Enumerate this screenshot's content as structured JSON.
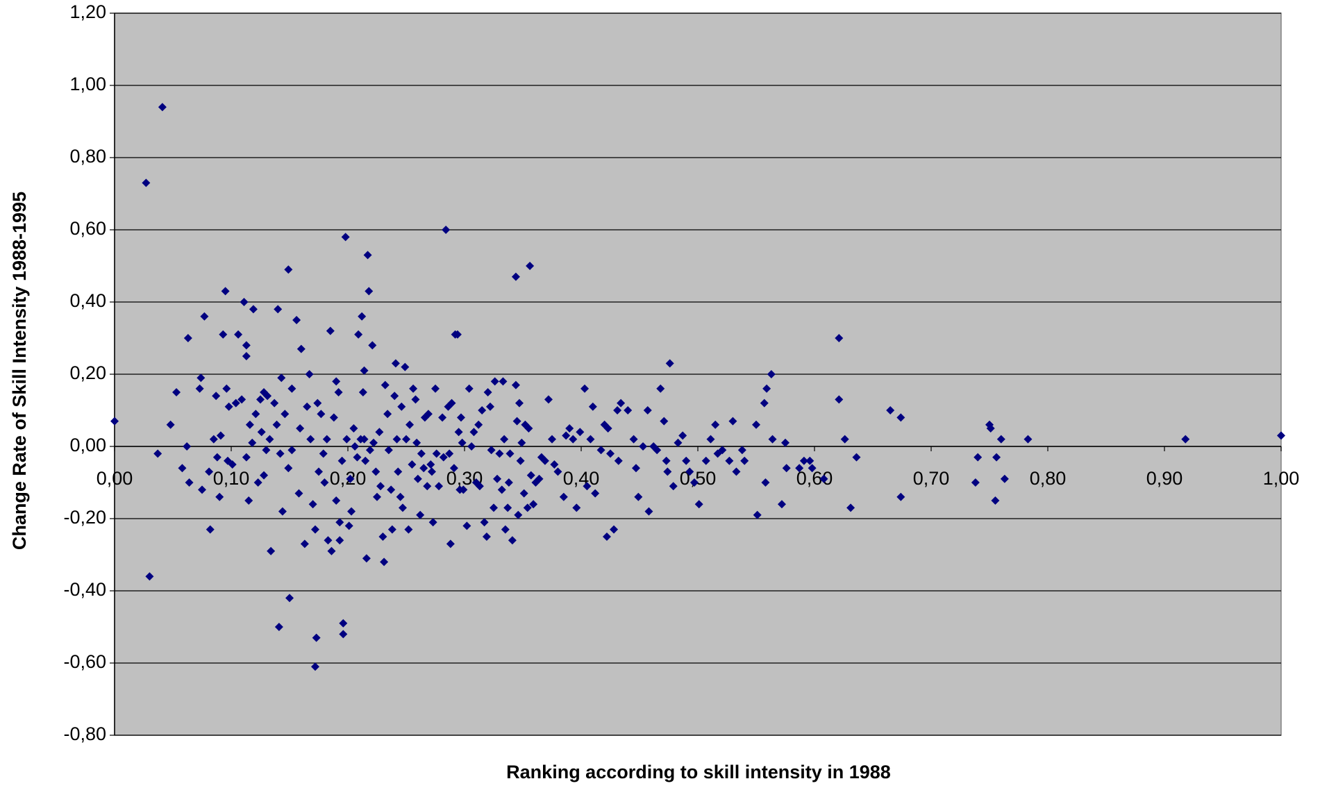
{
  "chart_data": {
    "type": "scatter",
    "xlabel": "Ranking according to skill intensity in 1988",
    "ylabel": "Change Rate of Skill Intensity 1988-1995",
    "color": "#000080",
    "grid": true,
    "plot_background": "#c0c0c0",
    "xlim": [
      0,
      1
    ],
    "ylim": [
      -0.8,
      1.2
    ],
    "xticks": [
      {
        "value": 0,
        "label": "0,00"
      },
      {
        "value": 0.1,
        "label": "0,10"
      },
      {
        "value": 0.2,
        "label": "0,20"
      },
      {
        "value": 0.3,
        "label": "0,30"
      },
      {
        "value": 0.4,
        "label": "0,40"
      },
      {
        "value": 0.5,
        "label": "0,50"
      },
      {
        "value": 0.6,
        "label": "0,60"
      },
      {
        "value": 0.7,
        "label": "0,70"
      },
      {
        "value": 0.8,
        "label": "0,80"
      },
      {
        "value": 0.9,
        "label": "0,90"
      },
      {
        "value": 1,
        "label": "1,00"
      }
    ],
    "yticks": [
      {
        "value": -0.8,
        "label": "-0,80"
      },
      {
        "value": -0.6,
        "label": "-0,60"
      },
      {
        "value": -0.4,
        "label": "-0,40"
      },
      {
        "value": -0.2,
        "label": "-0,20"
      },
      {
        "value": 0,
        "label": "0,00"
      },
      {
        "value": 0.2,
        "label": "0,20"
      },
      {
        "value": 0.4,
        "label": "0,40"
      },
      {
        "value": 0.6,
        "label": "0,60"
      },
      {
        "value": 0.8,
        "label": "0,80"
      },
      {
        "value": 1,
        "label": "1,00"
      },
      {
        "value": 1.2,
        "label": "1,20"
      }
    ],
    "x": [
      0.0,
      0.027,
      0.041,
      0.03,
      0.037,
      0.048,
      0.053,
      0.058,
      0.062,
      0.063,
      0.064,
      0.073,
      0.074,
      0.075,
      0.077,
      0.082,
      0.081,
      0.087,
      0.085,
      0.088,
      0.09,
      0.091,
      0.093,
      0.095,
      0.096,
      0.097,
      0.098,
      0.101,
      0.104,
      0.106,
      0.109,
      0.111,
      0.113,
      0.113,
      0.113,
      0.115,
      0.116,
      0.118,
      0.119,
      0.121,
      0.123,
      0.125,
      0.126,
      0.128,
      0.128,
      0.13,
      0.131,
      0.133,
      0.134,
      0.137,
      0.139,
      0.14,
      0.141,
      0.142,
      0.143,
      0.144,
      0.146,
      0.149,
      0.149,
      0.15,
      0.152,
      0.152,
      0.156,
      0.158,
      0.159,
      0.16,
      0.163,
      0.165,
      0.167,
      0.168,
      0.17,
      0.172,
      0.172,
      0.173,
      0.174,
      0.175,
      0.177,
      0.179,
      0.18,
      0.182,
      0.183,
      0.185,
      0.186,
      0.188,
      0.19,
      0.19,
      0.192,
      0.193,
      0.193,
      0.195,
      0.196,
      0.196,
      0.198,
      0.199,
      0.201,
      0.202,
      0.203,
      0.205,
      0.206,
      0.208,
      0.209,
      0.211,
      0.212,
      0.213,
      0.214,
      0.214,
      0.215,
      0.216,
      0.217,
      0.218,
      0.219,
      0.221,
      0.222,
      0.224,
      0.225,
      0.227,
      0.228,
      0.23,
      0.231,
      0.232,
      0.234,
      0.235,
      0.237,
      0.238,
      0.24,
      0.241,
      0.242,
      0.243,
      0.245,
      0.246,
      0.247,
      0.249,
      0.25,
      0.252,
      0.253,
      0.255,
      0.256,
      0.258,
      0.259,
      0.26,
      0.262,
      0.263,
      0.265,
      0.266,
      0.268,
      0.269,
      0.271,
      0.272,
      0.273,
      0.275,
      0.276,
      0.278,
      0.281,
      0.282,
      0.284,
      0.286,
      0.287,
      0.288,
      0.289,
      0.291,
      0.292,
      0.294,
      0.295,
      0.296,
      0.297,
      0.298,
      0.299,
      0.302,
      0.304,
      0.306,
      0.308,
      0.31,
      0.312,
      0.313,
      0.315,
      0.317,
      0.319,
      0.32,
      0.322,
      0.323,
      0.325,
      0.326,
      0.328,
      0.33,
      0.332,
      0.333,
      0.334,
      0.335,
      0.337,
      0.338,
      0.339,
      0.341,
      0.344,
      0.344,
      0.345,
      0.346,
      0.347,
      0.348,
      0.349,
      0.351,
      0.352,
      0.354,
      0.355,
      0.356,
      0.357,
      0.359,
      0.361,
      0.364,
      0.366,
      0.369,
      0.372,
      0.375,
      0.377,
      0.38,
      0.385,
      0.387,
      0.39,
      0.393,
      0.396,
      0.399,
      0.403,
      0.405,
      0.408,
      0.41,
      0.412,
      0.417,
      0.42,
      0.422,
      0.423,
      0.425,
      0.428,
      0.431,
      0.432,
      0.434,
      0.44,
      0.445,
      0.447,
      0.449,
      0.453,
      0.457,
      0.458,
      0.462,
      0.465,
      0.468,
      0.471,
      0.473,
      0.474,
      0.476,
      0.479,
      0.483,
      0.487,
      0.49,
      0.493,
      0.497,
      0.501,
      0.507,
      0.511,
      0.515,
      0.517,
      0.521,
      0.527,
      0.53,
      0.533,
      0.538,
      0.54,
      0.55,
      0.551,
      0.557,
      0.558,
      0.559,
      0.563,
      0.564,
      0.572,
      0.575,
      0.576,
      0.587,
      0.591,
      0.596,
      0.598,
      0.608,
      0.621,
      0.621,
      0.626,
      0.631,
      0.636,
      0.665,
      0.674,
      0.674,
      0.738,
      0.74,
      0.75,
      0.751,
      0.755,
      0.756,
      0.76,
      0.763,
      0.783,
      0.918,
      1.0
    ],
    "values": [
      0.07,
      0.73,
      0.94,
      -0.36,
      -0.02,
      0.06,
      0.15,
      -0.06,
      0.0,
      0.3,
      -0.1,
      0.16,
      0.19,
      -0.12,
      0.36,
      -0.23,
      -0.07,
      0.14,
      0.02,
      -0.03,
      -0.14,
      0.03,
      0.31,
      0.43,
      0.16,
      -0.04,
      0.11,
      -0.05,
      0.12,
      0.31,
      0.13,
      0.4,
      0.28,
      0.25,
      -0.03,
      -0.15,
      0.06,
      0.01,
      0.38,
      0.09,
      -0.1,
      0.13,
      0.04,
      0.15,
      -0.08,
      -0.01,
      0.14,
      0.02,
      -0.29,
      0.12,
      0.06,
      0.38,
      -0.5,
      -0.02,
      0.19,
      -0.18,
      0.09,
      0.49,
      -0.06,
      -0.42,
      0.16,
      -0.01,
      0.35,
      -0.13,
      0.05,
      0.27,
      -0.27,
      0.11,
      0.2,
      0.02,
      -0.16,
      -0.61,
      -0.23,
      -0.53,
      0.12,
      -0.07,
      0.09,
      -0.02,
      -0.1,
      0.02,
      -0.26,
      0.32,
      -0.29,
      0.08,
      0.18,
      -0.15,
      0.15,
      -0.21,
      -0.26,
      -0.04,
      -0.49,
      -0.52,
      0.58,
      0.02,
      -0.22,
      -0.09,
      -0.18,
      0.05,
      0.0,
      -0.03,
      0.31,
      0.02,
      0.36,
      0.15,
      0.21,
      0.02,
      -0.04,
      -0.31,
      0.53,
      0.43,
      -0.01,
      0.28,
      0.01,
      -0.07,
      -0.14,
      0.04,
      -0.11,
      -0.25,
      -0.32,
      0.17,
      0.09,
      -0.01,
      -0.12,
      -0.23,
      0.14,
      0.23,
      0.02,
      -0.07,
      -0.14,
      0.11,
      -0.17,
      0.22,
      0.02,
      -0.23,
      0.06,
      -0.05,
      0.16,
      0.13,
      0.01,
      -0.09,
      -0.19,
      -0.02,
      -0.06,
      0.08,
      -0.11,
      0.09,
      -0.05,
      -0.07,
      -0.21,
      0.16,
      -0.02,
      -0.11,
      0.08,
      -0.03,
      0.6,
      0.11,
      -0.02,
      -0.27,
      0.12,
      -0.06,
      0.31,
      0.31,
      0.04,
      -0.12,
      0.08,
      0.01,
      -0.12,
      -0.22,
      0.16,
      0.0,
      0.04,
      -0.1,
      0.06,
      -0.11,
      0.1,
      -0.21,
      -0.25,
      0.15,
      0.11,
      -0.01,
      -0.17,
      0.18,
      -0.09,
      -0.02,
      -0.12,
      0.18,
      0.02,
      -0.23,
      -0.17,
      -0.1,
      -0.02,
      -0.26,
      0.17,
      0.47,
      0.07,
      -0.19,
      0.12,
      -0.04,
      0.01,
      -0.13,
      0.06,
      -0.17,
      0.05,
      0.5,
      -0.08,
      -0.16,
      -0.1,
      -0.09,
      -0.03,
      -0.04,
      0.13,
      0.02,
      -0.05,
      -0.07,
      -0.14,
      0.03,
      0.05,
      0.02,
      -0.17,
      0.04,
      0.16,
      -0.11,
      0.02,
      0.11,
      -0.13,
      -0.01,
      0.06,
      -0.25,
      0.05,
      -0.02,
      -0.23,
      0.1,
      -0.04,
      0.12,
      0.1,
      0.02,
      -0.06,
      -0.14,
      0.0,
      0.1,
      -0.18,
      0.0,
      -0.01,
      0.16,
      0.07,
      -0.04,
      -0.07,
      0.23,
      -0.11,
      0.01,
      0.03,
      -0.04,
      -0.07,
      -0.1,
      -0.16,
      -0.04,
      0.02,
      0.06,
      -0.02,
      -0.01,
      -0.04,
      0.07,
      -0.07,
      -0.01,
      -0.04,
      0.06,
      -0.19,
      0.12,
      -0.1,
      0.16,
      0.2,
      0.02,
      -0.16,
      0.01,
      -0.06,
      -0.06,
      -0.04,
      -0.04,
      -0.06,
      -0.09,
      0.3,
      0.13,
      0.02,
      -0.17,
      -0.03,
      0.1,
      0.08,
      -0.14,
      -0.1,
      -0.03,
      0.06,
      0.05,
      -0.15,
      -0.03,
      0.02,
      -0.09,
      0.02,
      0.02,
      0.03
    ]
  }
}
